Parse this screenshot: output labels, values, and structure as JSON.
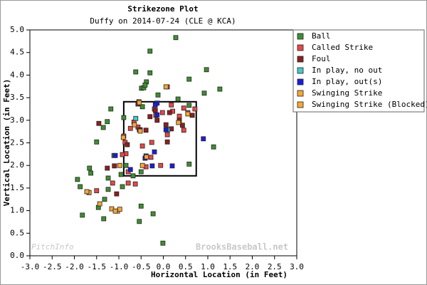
{
  "chart_data": {
    "type": "scatter",
    "title": "Strikezone Plot",
    "subtitle": "Duffy on 2014-07-24 (CLE @ KCA)",
    "x_label": "Horizontal Location (in Feet)",
    "y_label": "Vertical Location (in Feet)",
    "watermarks": [
      "PitchInfo",
      "BrooksBaseball.net"
    ],
    "xlim": [
      -3.0,
      3.0
    ],
    "ylim": [
      0.0,
      5.0
    ],
    "xticks": [
      {
        "value": -3.0,
        "label": "-3.0"
      },
      {
        "value": -2.5,
        "label": "-2.5"
      },
      {
        "value": -2.0,
        "label": "-2.0"
      },
      {
        "value": -1.5,
        "label": "-1.5"
      },
      {
        "value": -1.0,
        "label": "-1.0"
      },
      {
        "value": -0.5,
        "label": "-0.5"
      },
      {
        "value": 0.0,
        "label": "0.0"
      },
      {
        "value": 0.5,
        "label": "0.5"
      },
      {
        "value": 1.0,
        "label": "1.0"
      },
      {
        "value": 1.5,
        "label": "1.5"
      },
      {
        "value": 2.0,
        "label": "2.0"
      },
      {
        "value": 2.5,
        "label": "2.5"
      },
      {
        "value": 3.0,
        "label": "3.0"
      }
    ],
    "yticks": [
      {
        "value": 0.0,
        "label": "0.0"
      },
      {
        "value": 0.5,
        "label": "0.5"
      },
      {
        "value": 1.0,
        "label": "1.0"
      },
      {
        "value": 1.5,
        "label": "1.5"
      },
      {
        "value": 2.0,
        "label": "2.0"
      },
      {
        "value": 2.5,
        "label": "2.5"
      },
      {
        "value": 3.0,
        "label": "3.0"
      },
      {
        "value": 3.5,
        "label": "3.5"
      },
      {
        "value": 4.0,
        "label": "4.0"
      },
      {
        "value": 4.5,
        "label": "4.5"
      },
      {
        "value": 5.0,
        "label": "5.0"
      }
    ],
    "grid": false,
    "legend": "outside-right",
    "strike_zone": {
      "left": -0.89,
      "right": 0.74,
      "bottom": 1.77,
      "top": 3.41
    },
    "series": [
      {
        "name": "Ball",
        "color": "#3f8f2f",
        "x": [
          0.28,
          -0.3,
          -0.62,
          -0.3,
          0.58,
          0.97,
          1.27,
          0.92,
          -0.38,
          -0.49,
          -0.44,
          -1.18,
          -1.26,
          -1.35,
          -1.5,
          -1.11,
          -1.66,
          -1.63,
          -1.93,
          -1.87,
          -1.67,
          -1.24,
          -1.24,
          -1.32,
          -1.46,
          -1.82,
          -1.34,
          -0.54,
          -0.23,
          -0.01,
          -0.5,
          -0.68,
          0.58,
          1.13,
          -0.5,
          -0.84,
          0.33,
          0.58,
          -0.89,
          -0.47,
          -0.92,
          -0.95,
          -0.41,
          -0.12
        ],
        "values": [
          4.83,
          4.53,
          4.07,
          4.05,
          3.91,
          4.12,
          3.69,
          3.6,
          3.85,
          3.71,
          3.72,
          3.25,
          2.97,
          2.84,
          2.52,
          2.22,
          1.94,
          1.83,
          1.69,
          1.53,
          1.4,
          1.72,
          1.47,
          1.25,
          1.07,
          0.9,
          0.82,
          0.76,
          0.93,
          0.28,
          1.1,
          1.77,
          2.03,
          2.41,
          1.86,
          2.0,
          3.47,
          3.33,
          3.06,
          3.3,
          1.53,
          1.8,
          3.78,
          3.56
        ]
      },
      {
        "name": "Called Strike",
        "color": "#e84848",
        "x": [
          0.09,
          -0.55,
          -0.2,
          0.18,
          -0.02,
          0.46,
          0.55,
          0.36,
          -0.57,
          -0.74,
          -0.52,
          0.09,
          0.46,
          -0.89,
          -0.84,
          -0.47,
          -0.26,
          -0.28,
          -0.39,
          -0.63,
          -0.79,
          -0.06,
          -0.86,
          -0.66,
          -0.92,
          -0.17,
          0.71,
          0.21,
          -1.14,
          -1.5,
          -0.79
        ],
        "values": [
          3.74,
          3.41,
          3.25,
          3.34,
          3.17,
          3.27,
          3.17,
          3.09,
          2.85,
          2.82,
          2.79,
          2.68,
          2.78,
          2.65,
          2.26,
          2.43,
          2.51,
          2.18,
          1.97,
          1.59,
          1.61,
          2.0,
          2.51,
          2.96,
          2.24,
          3.11,
          3.25,
          3.2,
          1.61,
          1.44,
          1.86
        ]
      },
      {
        "name": "Foul",
        "color": "#8e1f1f",
        "x": [
          -0.57,
          0.14,
          0.43,
          0.06,
          -0.14,
          -0.3,
          -0.81,
          -1.1,
          -1.26,
          -1.05,
          0.09,
          -0.54,
          0.18,
          0.36,
          0.65,
          -0.39,
          -0.18,
          -1.45
        ],
        "values": [
          3.36,
          3.17,
          2.89,
          2.9,
          3.0,
          3.08,
          2.46,
          1.99,
          1.94,
          1.37,
          2.52,
          2.79,
          2.81,
          3.0,
          3.11,
          2.78,
          3.22,
          2.93
        ]
      },
      {
        "name": "In play, no out",
        "color": "#48c8c8",
        "x": [
          0.1,
          -0.62
        ],
        "values": [
          2.79,
          3.04
        ]
      },
      {
        "name": "In play, out(s)",
        "color": "#1c1ce0",
        "x": [
          -1.08,
          -0.74,
          -0.14,
          -0.14,
          0.06,
          -0.41,
          -0.2,
          0.9,
          -0.25,
          -0.18,
          -0.39,
          0.2
        ],
        "values": [
          2.22,
          1.91,
          3.38,
          3.12,
          2.79,
          2.16,
          2.3,
          2.59,
          1.99,
          3.34,
          2.21,
          1.99
        ]
      },
      {
        "name": "Swinging Strike",
        "color": "#f4a838",
        "x": [
          0.06,
          -0.54,
          0.55,
          -0.65,
          -0.9,
          -0.52,
          -0.38,
          -0.47,
          -0.98,
          -1.67,
          -1.43,
          -1.16,
          -1.03,
          -0.98,
          -1.72,
          0.34
        ],
        "values": [
          3.74,
          3.39,
          3.14,
          2.9,
          2.62,
          2.76,
          2.19,
          2.0,
          2.0,
          1.4,
          1.15,
          1.04,
          0.99,
          1.03,
          1.42,
          2.95
        ]
      },
      {
        "name": "Swinging Strike (Blocked)",
        "color": "#f4a838",
        "x": [
          -1.08
        ],
        "values": [
          0.99
        ]
      }
    ]
  }
}
